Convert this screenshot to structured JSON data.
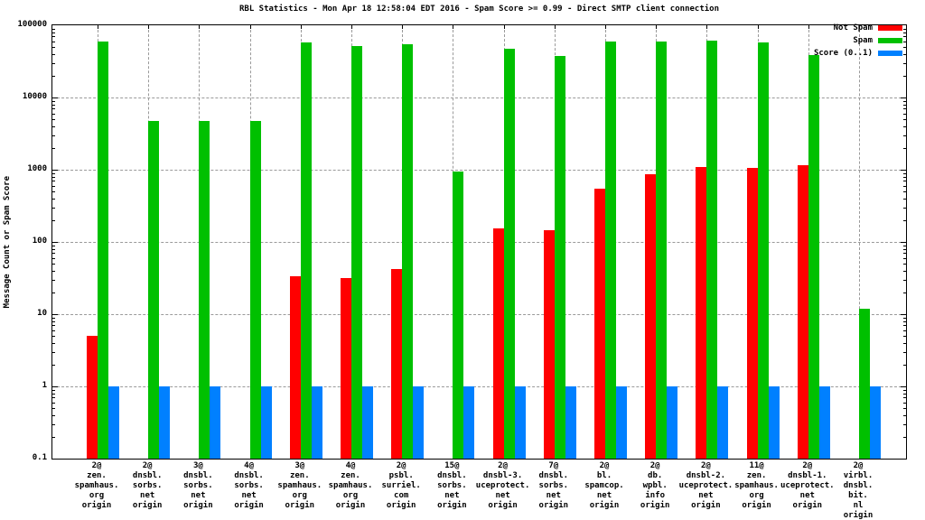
{
  "title": "RBL Statistics - Mon Apr 18 12:58:04 EDT 2016 - Spam Score >= 0.99 - Direct SMTP client connection",
  "ylabel": "Message Count or Spam Score",
  "legend": {
    "position": "top-right-inside",
    "items": [
      {
        "label": "Not Spam",
        "color": "#ff0000"
      },
      {
        "label": "Spam",
        "color": "#00c000"
      },
      {
        "label": "Score (0..1)",
        "color": "#0080ff"
      }
    ]
  },
  "chart_data": {
    "type": "bar",
    "yscale": "log",
    "ylim": [
      0.1,
      100000
    ],
    "ytick_labels": [
      "100000",
      "10000",
      "1000",
      "100",
      "10",
      "1",
      "0.1"
    ],
    "grid": "dashed gray at every decade and every category",
    "categories": [
      [
        "2@",
        "zen.",
        "spamhaus.",
        "org",
        "origin"
      ],
      [
        "2@",
        "dnsbl.",
        "sorbs.",
        "net",
        "origin"
      ],
      [
        "3@",
        "dnsbl.",
        "sorbs.",
        "net",
        "origin"
      ],
      [
        "4@",
        "dnsbl.",
        "sorbs.",
        "net",
        "origin"
      ],
      [
        "3@",
        "zen.",
        "spamhaus.",
        "org",
        "origin"
      ],
      [
        "4@",
        "zen.",
        "spamhaus.",
        "org",
        "origin"
      ],
      [
        "2@",
        "psbl.",
        "surriel.",
        "com",
        "origin"
      ],
      [
        "15@",
        "dnsbl.",
        "sorbs.",
        "net",
        "origin"
      ],
      [
        "2@",
        "dnsbl-3.",
        "uceprotect.",
        "net",
        "origin"
      ],
      [
        "7@",
        "dnsbl.",
        "sorbs.",
        "net",
        "origin"
      ],
      [
        "2@",
        "bl.",
        "spamcop.",
        "net",
        "origin"
      ],
      [
        "2@",
        "db.",
        "wpbl.",
        "info",
        "origin"
      ],
      [
        "2@",
        "dnsbl-2.",
        "uceprotect.",
        "net",
        "origin"
      ],
      [
        "11@",
        "zen.",
        "spamhaus.",
        "org",
        "origin"
      ],
      [
        "2@",
        "dnsbl-1.",
        "uceprotect.",
        "net",
        "origin"
      ],
      [
        "2@",
        "virbl.",
        "dnsbl.",
        "bit.",
        "nl",
        "origin"
      ]
    ],
    "series": [
      {
        "name": "Not Spam",
        "color": "#ff0000",
        "values": [
          5,
          null,
          null,
          null,
          34,
          32,
          42,
          null,
          155,
          145,
          550,
          870,
          1100,
          1060,
          1160,
          null
        ]
      },
      {
        "name": "Spam",
        "color": "#00c000",
        "values": [
          60000,
          4700,
          4700,
          4700,
          58000,
          51000,
          55000,
          950,
          48000,
          38000,
          60000,
          60000,
          62000,
          58000,
          39000,
          12
        ]
      },
      {
        "name": "Score (0..1)",
        "color": "#0080ff",
        "values": [
          1,
          1,
          1,
          1,
          1,
          1,
          1,
          1,
          1,
          1,
          1,
          1,
          1,
          1,
          1,
          1
        ]
      }
    ]
  }
}
